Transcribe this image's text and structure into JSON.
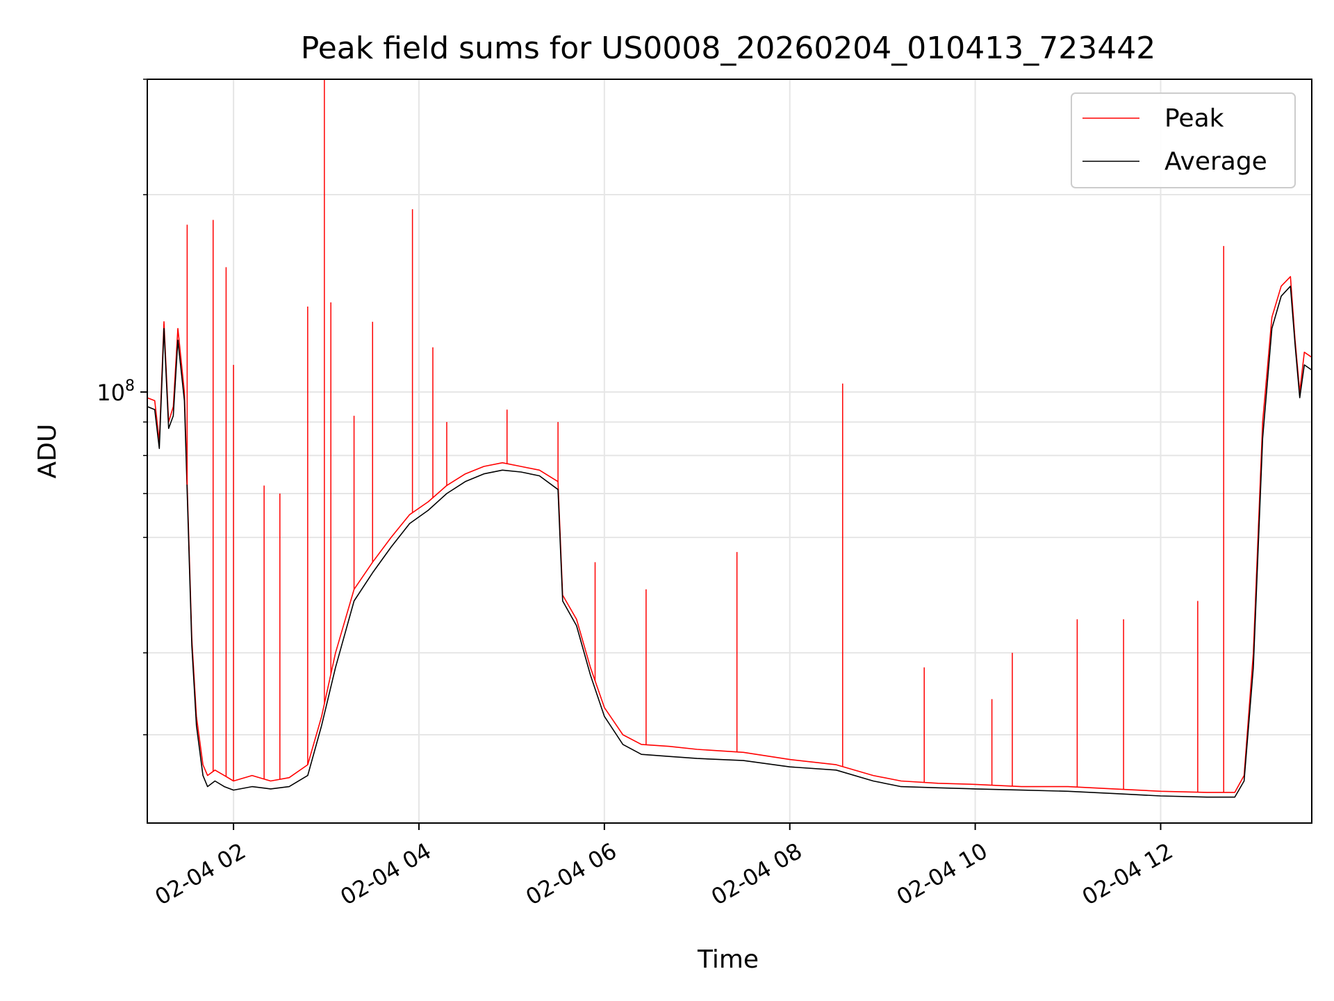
{
  "chart_data": {
    "type": "line",
    "title": "Peak field sums for US0008_20260204_010413_723442",
    "xlabel": "Time",
    "ylabel": "ADU",
    "yscale": "log",
    "x_ticks": [
      "02-04 02",
      "02-04 04",
      "02-04 06",
      "02-04 08",
      "02-04 10",
      "02-04 12"
    ],
    "x_tick_hours": [
      2,
      4,
      6,
      8,
      10,
      12
    ],
    "xlim_hours": [
      1.07,
      13.63
    ],
    "y_tick_label": {
      "base": "10",
      "exp": "8"
    },
    "ylim": [
      22000000,
      300000000
    ],
    "grid": true,
    "legend_position": "upper right",
    "series": [
      {
        "name": "Peak",
        "color": "#ff0000",
        "x_hours": [
          1.07,
          1.15,
          1.2,
          1.25,
          1.3,
          1.35,
          1.4,
          1.47,
          1.55,
          1.6,
          1.67,
          1.72,
          1.8,
          1.9,
          2.0,
          2.2,
          2.4,
          2.6,
          2.8,
          2.95,
          3.1,
          3.3,
          3.5,
          3.7,
          3.9,
          4.1,
          4.3,
          4.5,
          4.7,
          4.9,
          5.1,
          5.3,
          5.5,
          5.55,
          5.7,
          5.85,
          6.0,
          6.2,
          6.4,
          6.7,
          7.0,
          7.5,
          8.0,
          8.5,
          8.9,
          9.2,
          9.6,
          10.0,
          10.5,
          11.0,
          11.5,
          12.0,
          12.5,
          12.8,
          12.9,
          13.0,
          13.1,
          13.2,
          13.3,
          13.4,
          13.45,
          13.5,
          13.55,
          13.63
        ],
        "values": [
          98000000,
          97000000,
          84000000,
          128000000,
          90000000,
          95000000,
          125000000,
          100000000,
          42000000,
          32000000,
          27000000,
          26000000,
          26500000,
          26000000,
          25500000,
          26000000,
          25500000,
          25800000,
          27000000,
          32000000,
          40000000,
          50000000,
          55000000,
          60000000,
          65000000,
          68000000,
          72000000,
          75000000,
          77000000,
          78000000,
          77000000,
          76000000,
          73000000,
          49000000,
          45000000,
          38000000,
          33000000,
          30000000,
          29000000,
          28800000,
          28500000,
          28200000,
          27500000,
          27000000,
          26000000,
          25500000,
          25300000,
          25200000,
          25000000,
          25000000,
          24800000,
          24600000,
          24500000,
          24500000,
          26000000,
          40000000,
          90000000,
          130000000,
          145000000,
          150000000,
          120000000,
          100000000,
          115000000,
          113000000
        ]
      },
      {
        "name": "Average",
        "color": "#000000",
        "x_hours": [
          1.07,
          1.15,
          1.2,
          1.25,
          1.3,
          1.35,
          1.4,
          1.47,
          1.55,
          1.6,
          1.67,
          1.72,
          1.8,
          1.9,
          2.0,
          2.2,
          2.4,
          2.6,
          2.8,
          2.95,
          3.1,
          3.3,
          3.5,
          3.7,
          3.9,
          4.1,
          4.3,
          4.5,
          4.7,
          4.9,
          5.1,
          5.3,
          5.5,
          5.55,
          5.7,
          5.85,
          6.0,
          6.2,
          6.4,
          6.7,
          7.0,
          7.5,
          8.0,
          8.5,
          8.9,
          9.2,
          9.6,
          10.0,
          10.5,
          11.0,
          11.5,
          12.0,
          12.5,
          12.8,
          12.9,
          13.0,
          13.1,
          13.2,
          13.3,
          13.4,
          13.45,
          13.5,
          13.55,
          13.63
        ],
        "values": [
          95000000,
          94000000,
          82000000,
          125000000,
          88000000,
          92000000,
          120000000,
          97000000,
          41000000,
          31000000,
          26000000,
          25000000,
          25500000,
          25000000,
          24700000,
          25000000,
          24800000,
          25000000,
          26000000,
          31000000,
          38000000,
          48000000,
          53000000,
          58000000,
          63000000,
          66000000,
          70000000,
          73000000,
          75000000,
          76000000,
          75500000,
          74500000,
          71000000,
          48000000,
          44000000,
          37000000,
          32000000,
          29000000,
          28000000,
          27800000,
          27600000,
          27400000,
          26800000,
          26500000,
          25500000,
          25000000,
          24900000,
          24800000,
          24700000,
          24600000,
          24400000,
          24200000,
          24100000,
          24100000,
          25500000,
          38000000,
          85000000,
          125000000,
          140000000,
          145000000,
          118000000,
          98000000,
          110000000,
          108000000
        ]
      }
    ],
    "peak_spikes": [
      {
        "x_hours": 1.5,
        "value": 180000000
      },
      {
        "x_hours": 1.78,
        "value": 183000000
      },
      {
        "x_hours": 1.92,
        "value": 155000000
      },
      {
        "x_hours": 2.0,
        "value": 110000000
      },
      {
        "x_hours": 2.33,
        "value": 72000000
      },
      {
        "x_hours": 2.5,
        "value": 70000000
      },
      {
        "x_hours": 2.8,
        "value": 135000000
      },
      {
        "x_hours": 2.98,
        "value": 300000000
      },
      {
        "x_hours": 3.05,
        "value": 137000000
      },
      {
        "x_hours": 3.3,
        "value": 92000000
      },
      {
        "x_hours": 3.5,
        "value": 128000000
      },
      {
        "x_hours": 3.93,
        "value": 190000000
      },
      {
        "x_hours": 4.15,
        "value": 117000000
      },
      {
        "x_hours": 4.3,
        "value": 90000000
      },
      {
        "x_hours": 4.95,
        "value": 94000000
      },
      {
        "x_hours": 5.5,
        "value": 90000000
      },
      {
        "x_hours": 5.9,
        "value": 55000000
      },
      {
        "x_hours": 6.45,
        "value": 50000000
      },
      {
        "x_hours": 7.43,
        "value": 57000000
      },
      {
        "x_hours": 8.57,
        "value": 103000000
      },
      {
        "x_hours": 9.45,
        "value": 38000000
      },
      {
        "x_hours": 10.18,
        "value": 34000000
      },
      {
        "x_hours": 10.4,
        "value": 40000000
      },
      {
        "x_hours": 11.1,
        "value": 45000000
      },
      {
        "x_hours": 11.6,
        "value": 45000000
      },
      {
        "x_hours": 12.4,
        "value": 48000000
      },
      {
        "x_hours": 12.68,
        "value": 167000000
      }
    ]
  }
}
